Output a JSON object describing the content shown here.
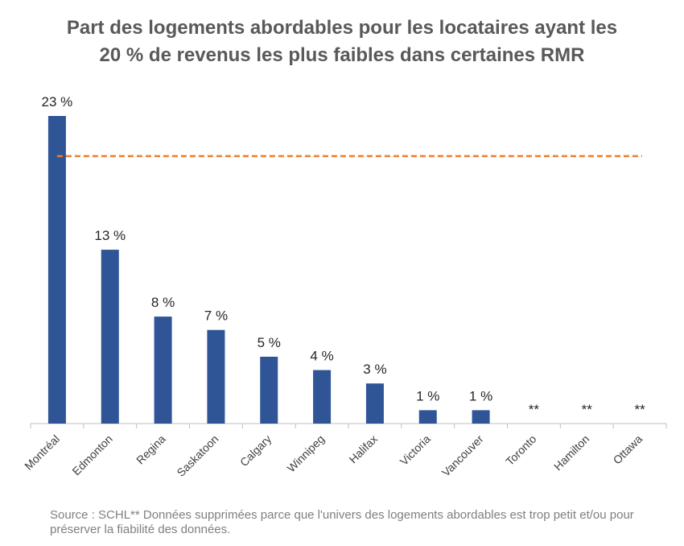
{
  "chart_data": {
    "type": "bar",
    "title": "Part des logements abordables pour les locataires ayant les 20 % de revenus les plus faibles dans certaines RMR",
    "categories": [
      "Montréal",
      "Edmonton",
      "Regina",
      "Saskatoon",
      "Calgary",
      "Winnipeg",
      "Halifax",
      "Victoria",
      "Vancouver",
      "Toronto",
      "Hamilton",
      "Ottawa"
    ],
    "values": [
      23,
      13,
      8,
      7,
      5,
      4,
      3,
      1,
      1,
      null,
      null,
      null
    ],
    "value_labels": [
      "23 %",
      "13 %",
      "8 %",
      "7 %",
      "5 %",
      "4 %",
      "3 %",
      "1 %",
      "1 %",
      "**",
      "**",
      "**"
    ],
    "color": "#2f5597",
    "ylim": [
      0,
      23
    ],
    "reference_line": {
      "value": 20,
      "color": "#ed7d31"
    },
    "footnote": "Source : SCHL** Données supprimées parce que l'univers des logements abordables est trop petit et/ou pour préserver la fiabilité des données."
  }
}
